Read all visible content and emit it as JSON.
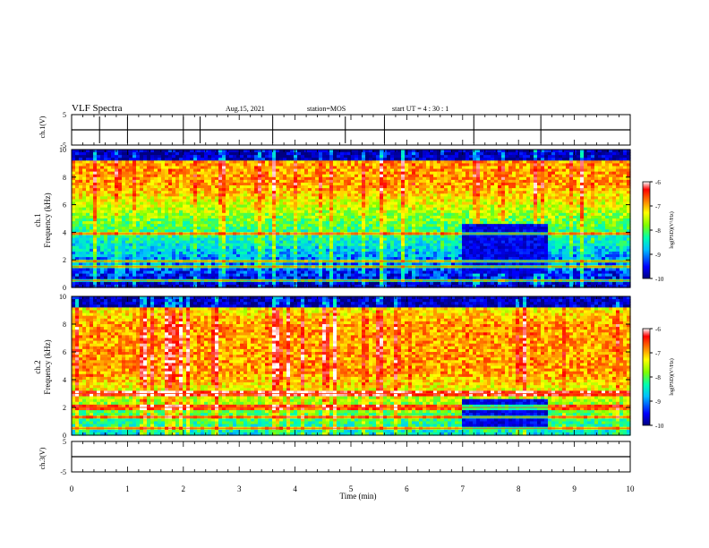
{
  "header": {
    "title": "VLF Spectra",
    "date": "Aug.15, 2021",
    "station": "station=MOS",
    "start": "start  UT =   4 : 30 : 1"
  },
  "chart_data": [
    {
      "type": "line",
      "panel": "ch1-waveform",
      "ylabel": "ch.1(V)",
      "ylim": [
        -5,
        5
      ],
      "ytick_labels": [
        "5",
        "-5"
      ],
      "baseline_value": 0,
      "spikes_min": [
        0.5,
        1.0,
        2.0,
        2.3,
        3.6,
        4.9,
        5.6,
        7.2,
        8.4
      ]
    },
    {
      "type": "heatmap",
      "panel": "ch1-spectrogram",
      "ylabel": "ch.1\nFrequency (kHz)",
      "ylim": [
        0,
        10
      ],
      "ytick_labels": [
        "0",
        "2",
        "4",
        "6",
        "8",
        "10"
      ],
      "colorbar": {
        "label": "log(PSD)(V²/Hz)",
        "range": [
          -10,
          -6
        ],
        "tick_labels": [
          "-6",
          "-7",
          "-8",
          "-9",
          "-10"
        ]
      },
      "dominant_band_khz": [
        7.5,
        9.0
      ],
      "quiet_region": {
        "time_min": [
          7.0,
          8.5
        ],
        "freq_khz": [
          1.0,
          4.5
        ]
      },
      "strong_lines_khz": [
        0.5,
        1.5,
        1.9,
        3.9
      ]
    },
    {
      "type": "heatmap",
      "panel": "ch2-spectrogram",
      "ylabel": "ch.2\nFrequency (kHz)",
      "ylim": [
        0,
        10
      ],
      "ytick_labels": [
        "0",
        "2",
        "4",
        "6",
        "8",
        "10"
      ],
      "colorbar": {
        "label": "log(PSD)(V²/Hz)",
        "range": [
          -10,
          -6
        ],
        "tick_labels": [
          "-6",
          "-7",
          "-8",
          "-9",
          "-10"
        ]
      },
      "dominant_band_khz": [
        4.5,
        8.0
      ],
      "quiet_region": {
        "time_min": [
          7.0,
          8.5
        ],
        "freq_khz": [
          0.5,
          2.5
        ]
      },
      "strong_lines_khz": [
        0.5,
        1.3,
        2.0,
        3.0
      ]
    },
    {
      "type": "line",
      "panel": "ch3-waveform",
      "ylabel": "ch.3(V)",
      "ylim": [
        -5,
        5
      ],
      "ytick_labels": [
        "5",
        "-5"
      ],
      "baseline_value": 0,
      "spikes_min": []
    }
  ],
  "xaxis": {
    "label": "Time (min)",
    "range": [
      0,
      10
    ],
    "tick_labels": [
      "0",
      "1",
      "2",
      "3",
      "4",
      "5",
      "6",
      "7",
      "8",
      "9",
      "10"
    ]
  },
  "colormap": [
    "#000080",
    "#0000ff",
    "#00c0ff",
    "#00ffb0",
    "#80ff00",
    "#ffff00",
    "#ff8000",
    "#ff0000",
    "#ffffff"
  ]
}
